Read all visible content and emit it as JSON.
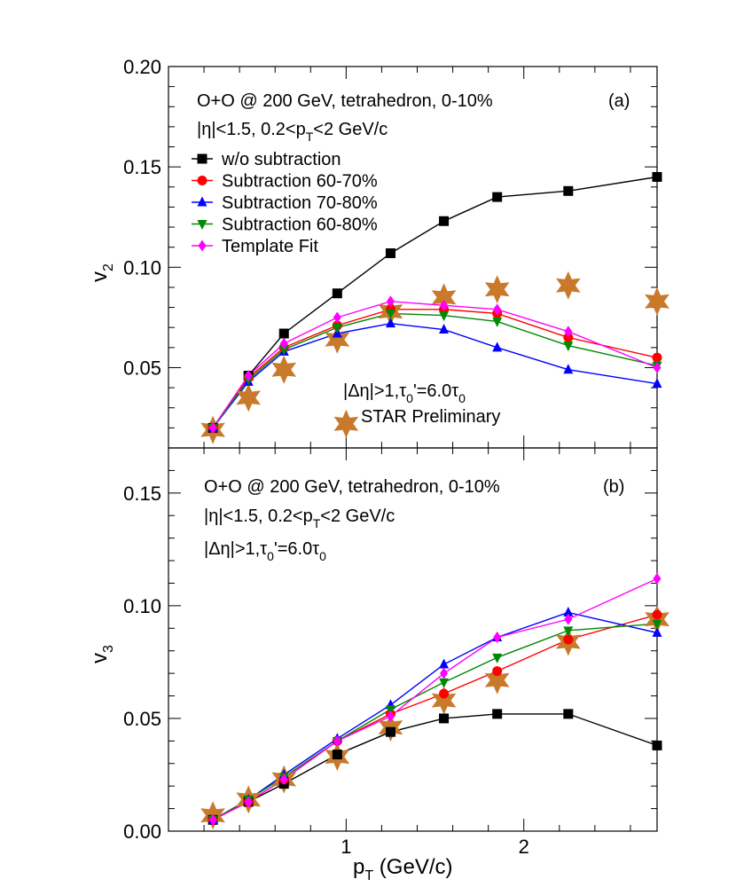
{
  "chart_data": [
    {
      "panel": "a",
      "type": "line",
      "ylabel": "v",
      "ylabel_sub": "2",
      "ylim": [
        0.01,
        0.2
      ],
      "xlim": [
        0.0,
        2.75
      ],
      "yticks": [
        {
          "value": 0.05,
          "label": "0.05"
        },
        {
          "value": 0.1,
          "label": "0.10"
        },
        {
          "value": 0.15,
          "label": "0.15"
        },
        {
          "value": 0.2,
          "label": "0.20"
        }
      ],
      "annotation_lines": [
        {
          "text": "O+O @ 200 GeV, tetrahedron, 0-10%"
        },
        {
          "pre": "|η|<1.5, 0.2<p",
          "sub": "T",
          "post": "<2 GeV/c"
        }
      ],
      "panel_label": "(a)",
      "extra_annotation": {
        "pre": "|Δη|>1,τ",
        "sub": "0",
        "post": "'=6.0τ",
        "sub2": "0"
      },
      "star_label": "STAR Preliminary",
      "legend": [
        "w/o subtraction",
        "Subtraction 60-70%",
        "Subtraction 70-80%",
        "Subtraction 60-80%",
        "Template Fit"
      ],
      "x": [
        0.25,
        0.45,
        0.65,
        0.95,
        1.25,
        1.55,
        1.85,
        2.25,
        2.75
      ],
      "series": [
        {
          "name": "w/o subtraction",
          "color": "#000000",
          "marker": "square",
          "values": [
            0.02,
            0.046,
            0.067,
            0.087,
            0.107,
            0.123,
            0.135,
            0.138,
            0.145
          ]
        },
        {
          "name": "Subtraction 60-70%",
          "color": "#ff0000",
          "marker": "circle",
          "values": [
            0.02,
            0.045,
            0.06,
            0.071,
            0.079,
            0.079,
            0.077,
            0.065,
            0.055
          ]
        },
        {
          "name": "Subtraction 70-80%",
          "color": "#0000ff",
          "marker": "triangle-up",
          "values": [
            0.02,
            0.043,
            0.058,
            0.067,
            0.072,
            0.069,
            0.06,
            0.049,
            0.042
          ]
        },
        {
          "name": "Subtraction 60-80%",
          "color": "#008800",
          "marker": "triangle-down",
          "values": [
            0.02,
            0.044,
            0.059,
            0.07,
            0.077,
            0.076,
            0.073,
            0.061,
            0.051
          ]
        },
        {
          "name": "Template Fit",
          "color": "#ff00ff",
          "marker": "diamond",
          "values": [
            0.02,
            0.046,
            0.062,
            0.075,
            0.083,
            0.081,
            0.079,
            0.068,
            0.05
          ]
        }
      ],
      "star_points": {
        "name": "STAR Preliminary",
        "color": "#c87a2a",
        "x": [
          0.25,
          0.45,
          0.65,
          0.95,
          1.0,
          1.25,
          1.55,
          1.85,
          2.25,
          2.75
        ],
        "values": [
          0.019,
          0.035,
          0.049,
          0.064,
          0.022,
          0.078,
          0.085,
          0.089,
          0.091,
          0.083
        ]
      }
    },
    {
      "panel": "b",
      "type": "line",
      "ylabel": "v",
      "ylabel_sub": "3",
      "ylim": [
        0.0,
        0.17
      ],
      "xlim": [
        0.0,
        2.75
      ],
      "yticks": [
        {
          "value": 0.0,
          "label": "0.00"
        },
        {
          "value": 0.05,
          "label": "0.05"
        },
        {
          "value": 0.1,
          "label": "0.10"
        },
        {
          "value": 0.15,
          "label": "0.15"
        }
      ],
      "annotation_lines": [
        {
          "text": "O+O @ 200 GeV, tetrahedron, 0-10%"
        },
        {
          "pre": "|η|<1.5, 0.2<p",
          "sub": "T",
          "post": "<2 GeV/c"
        },
        {
          "pre": "|Δη|>1,τ",
          "sub": "0",
          "post": "'=6.0τ",
          "sub2": "0"
        }
      ],
      "panel_label": "(b)",
      "x": [
        0.25,
        0.45,
        0.65,
        0.95,
        1.25,
        1.55,
        1.85,
        2.25,
        2.75
      ],
      "series": [
        {
          "name": "w/o subtraction",
          "color": "#000000",
          "marker": "square",
          "values": [
            0.005,
            0.013,
            0.021,
            0.034,
            0.044,
            0.05,
            0.052,
            0.052,
            0.038
          ]
        },
        {
          "name": "Subtraction 60-70%",
          "color": "#ff0000",
          "marker": "circle",
          "values": [
            0.005,
            0.013,
            0.023,
            0.04,
            0.052,
            0.061,
            0.071,
            0.085,
            0.096
          ]
        },
        {
          "name": "Subtraction 70-80%",
          "color": "#0000ff",
          "marker": "triangle-up",
          "values": [
            0.005,
            0.014,
            0.025,
            0.041,
            0.056,
            0.074,
            0.086,
            0.097,
            0.088
          ]
        },
        {
          "name": "Subtraction 60-80%",
          "color": "#008800",
          "marker": "triangle-down",
          "values": [
            0.005,
            0.014,
            0.024,
            0.04,
            0.054,
            0.066,
            0.077,
            0.089,
            0.092
          ]
        },
        {
          "name": "Template Fit",
          "color": "#ff00ff",
          "marker": "diamond",
          "values": [
            0.005,
            0.013,
            0.023,
            0.04,
            0.051,
            0.07,
            0.086,
            0.094,
            0.112
          ]
        }
      ],
      "star_points": {
        "name": "STAR Preliminary",
        "color": "#c87a2a",
        "x": [
          0.25,
          0.45,
          0.65,
          0.95,
          1.25,
          1.55,
          1.85,
          2.25,
          2.75
        ],
        "values": [
          0.007,
          0.014,
          0.023,
          0.033,
          0.046,
          0.058,
          0.067,
          0.084,
          0.094
        ]
      }
    }
  ],
  "xaxis": {
    "label_pre": "p",
    "label_sub": "T",
    "label_post": " (GeV/c)",
    "ticks": [
      {
        "value": 1,
        "label": "1"
      },
      {
        "value": 2,
        "label": "2"
      }
    ]
  }
}
